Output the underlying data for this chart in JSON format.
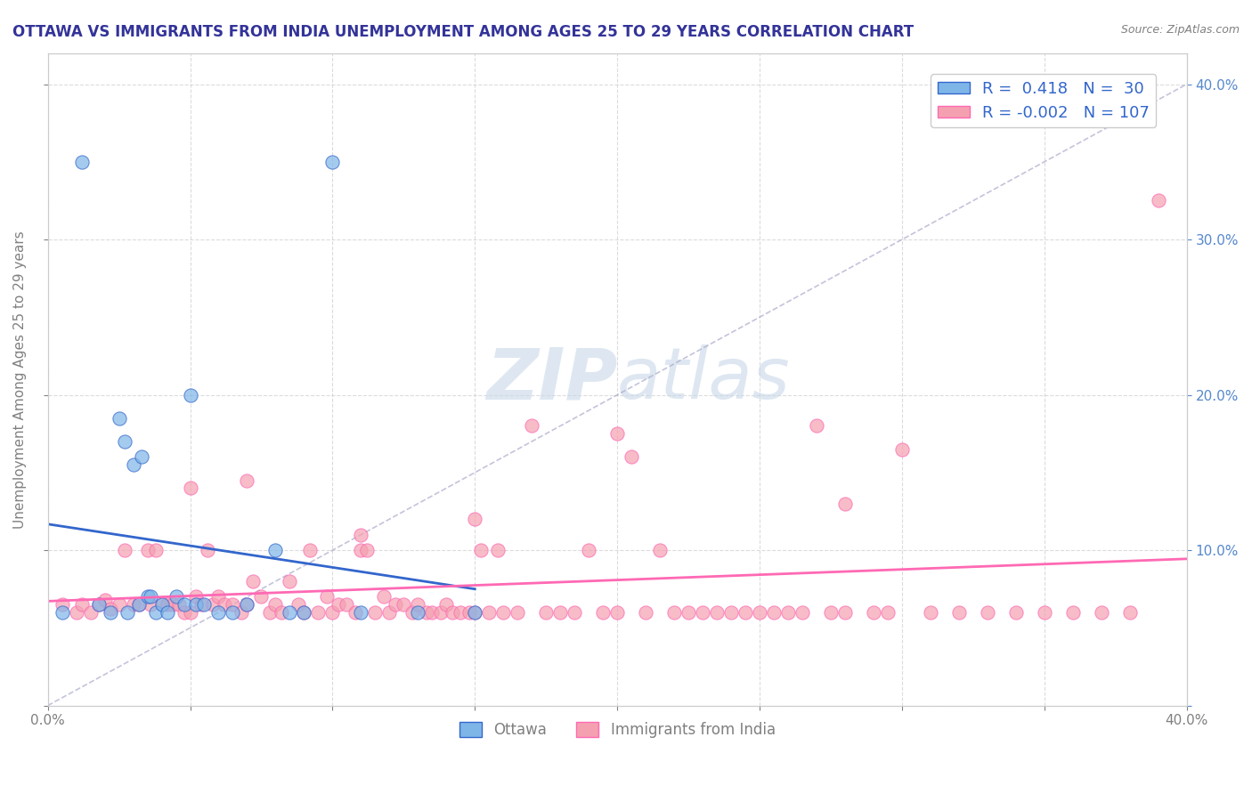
{
  "title": "OTTAWA VS IMMIGRANTS FROM INDIA UNEMPLOYMENT AMONG AGES 25 TO 29 YEARS CORRELATION CHART",
  "source": "Source: ZipAtlas.com",
  "ylabel": "Unemployment Among Ages 25 to 29 years",
  "xlim": [
    0.0,
    0.4
  ],
  "ylim": [
    0.0,
    0.42
  ],
  "ottawa_color": "#7EB6E8",
  "india_color": "#F4A0B0",
  "trend_ottawa_color": "#3366CC",
  "trend_india_color": "#FF69B4",
  "legend_R_ottawa": "0.418",
  "legend_N_ottawa": "30",
  "legend_R_india": "-0.002",
  "legend_N_india": "107",
  "watermark_zip": "ZIP",
  "watermark_atlas": "atlas",
  "ottawa_x": [
    0.005,
    0.012,
    0.018,
    0.022,
    0.025,
    0.027,
    0.028,
    0.03,
    0.032,
    0.033,
    0.035,
    0.036,
    0.038,
    0.04,
    0.042,
    0.045,
    0.048,
    0.05,
    0.052,
    0.055,
    0.06,
    0.065,
    0.07,
    0.08,
    0.085,
    0.09,
    0.1,
    0.11,
    0.13,
    0.15
  ],
  "ottawa_y": [
    0.06,
    0.35,
    0.065,
    0.06,
    0.185,
    0.17,
    0.06,
    0.155,
    0.065,
    0.16,
    0.07,
    0.07,
    0.06,
    0.065,
    0.06,
    0.07,
    0.065,
    0.2,
    0.065,
    0.065,
    0.06,
    0.06,
    0.065,
    0.1,
    0.06,
    0.06,
    0.35,
    0.06,
    0.06,
    0.06
  ],
  "india_x": [
    0.005,
    0.01,
    0.012,
    0.015,
    0.018,
    0.02,
    0.022,
    0.025,
    0.027,
    0.03,
    0.032,
    0.035,
    0.036,
    0.038,
    0.04,
    0.042,
    0.044,
    0.046,
    0.048,
    0.05,
    0.052,
    0.054,
    0.056,
    0.058,
    0.06,
    0.062,
    0.065,
    0.068,
    0.07,
    0.072,
    0.075,
    0.078,
    0.08,
    0.082,
    0.085,
    0.088,
    0.09,
    0.092,
    0.095,
    0.098,
    0.1,
    0.102,
    0.105,
    0.108,
    0.11,
    0.112,
    0.115,
    0.118,
    0.12,
    0.122,
    0.125,
    0.128,
    0.13,
    0.133,
    0.135,
    0.138,
    0.14,
    0.142,
    0.145,
    0.148,
    0.15,
    0.152,
    0.155,
    0.158,
    0.16,
    0.165,
    0.17,
    0.175,
    0.18,
    0.185,
    0.19,
    0.195,
    0.2,
    0.205,
    0.21,
    0.215,
    0.22,
    0.225,
    0.23,
    0.235,
    0.24,
    0.245,
    0.25,
    0.255,
    0.26,
    0.265,
    0.27,
    0.275,
    0.28,
    0.29,
    0.295,
    0.3,
    0.31,
    0.32,
    0.33,
    0.34,
    0.35,
    0.36,
    0.37,
    0.38,
    0.05,
    0.07,
    0.11,
    0.15,
    0.2,
    0.28,
    0.39
  ],
  "india_y": [
    0.065,
    0.06,
    0.065,
    0.06,
    0.065,
    0.068,
    0.062,
    0.065,
    0.1,
    0.065,
    0.065,
    0.1,
    0.065,
    0.1,
    0.065,
    0.065,
    0.065,
    0.065,
    0.06,
    0.06,
    0.07,
    0.065,
    0.1,
    0.065,
    0.07,
    0.065,
    0.065,
    0.06,
    0.065,
    0.08,
    0.07,
    0.06,
    0.065,
    0.06,
    0.08,
    0.065,
    0.06,
    0.1,
    0.06,
    0.07,
    0.06,
    0.065,
    0.065,
    0.06,
    0.1,
    0.1,
    0.06,
    0.07,
    0.06,
    0.065,
    0.065,
    0.06,
    0.065,
    0.06,
    0.06,
    0.06,
    0.065,
    0.06,
    0.06,
    0.06,
    0.06,
    0.1,
    0.06,
    0.1,
    0.06,
    0.06,
    0.18,
    0.06,
    0.06,
    0.06,
    0.1,
    0.06,
    0.06,
    0.16,
    0.06,
    0.1,
    0.06,
    0.06,
    0.06,
    0.06,
    0.06,
    0.06,
    0.06,
    0.06,
    0.06,
    0.06,
    0.18,
    0.06,
    0.06,
    0.06,
    0.06,
    0.165,
    0.06,
    0.06,
    0.06,
    0.06,
    0.06,
    0.06,
    0.06,
    0.06,
    0.14,
    0.145,
    0.11,
    0.12,
    0.175,
    0.13,
    0.325
  ],
  "background_color": "#FFFFFF",
  "grid_color": "#CCCCCC"
}
